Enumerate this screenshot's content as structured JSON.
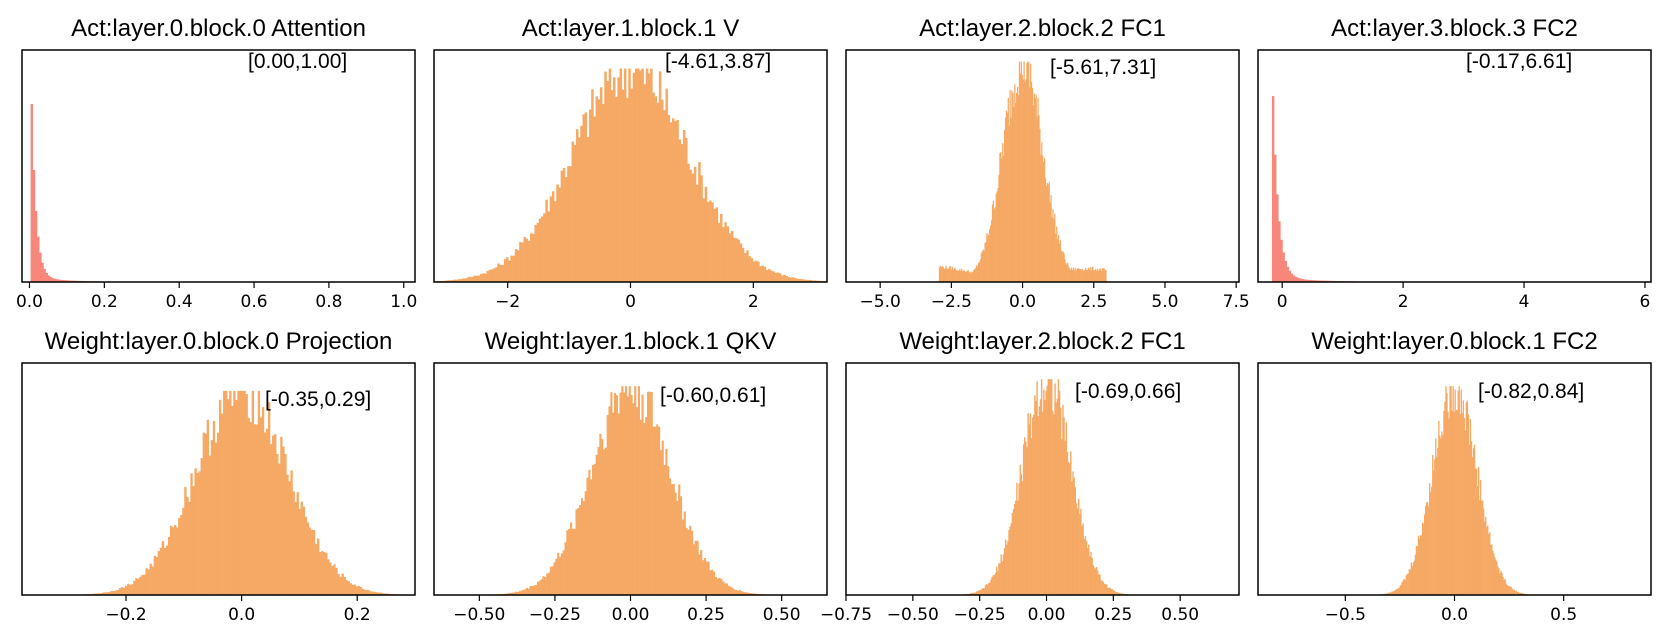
{
  "colors": {
    "salmon": "#f8867a",
    "orange": "#f5a964",
    "axis": "#000000"
  },
  "chart_data": [
    {
      "type": "bar",
      "title": "Act:layer.0.block.0 Attention",
      "range_label": "[0.00,1.00]",
      "color": "#f8867a",
      "shape": "decay",
      "center": 0.003,
      "scale": 0.012,
      "peak": 0.95,
      "xlim": [
        -0.02,
        1.03
      ],
      "ticks": [
        0.0,
        0.2,
        0.4,
        0.6,
        0.8,
        1.0
      ],
      "tick_labels": [
        "0.0",
        "0.2",
        "0.4",
        "0.6",
        "0.8",
        "1.0"
      ],
      "grid": false
    },
    {
      "type": "bar",
      "title": "Act:layer.1.block.1 V",
      "range_label": "[-4.61,3.87]",
      "color": "#f5a964",
      "shape": "gauss",
      "center": 0.0,
      "scale": 0.95,
      "peak": 0.92,
      "xlim": [
        -3.2,
        3.2
      ],
      "ticks": [
        -2,
        0,
        2
      ],
      "tick_labels": [
        "−2",
        "0",
        "2"
      ],
      "grid": false
    },
    {
      "type": "bar",
      "title": "Act:layer.2.block.2 FC1",
      "range_label": "[-5.61,7.31]",
      "color": "#f5a964",
      "shape": "heavy",
      "center": 0.0,
      "scale": 0.7,
      "peak": 0.95,
      "xlim": [
        -6.2,
        7.6
      ],
      "ticks": [
        -5.0,
        -2.5,
        0.0,
        2.5,
        5.0,
        7.5
      ],
      "tick_labels": [
        "−5.0",
        "−2.5",
        "0.0",
        "2.5",
        "5.0",
        "7.5"
      ],
      "grid": false
    },
    {
      "type": "bar",
      "title": "Act:layer.3.block.3 FC2",
      "range_label": "[-0.17,6.61]",
      "color": "#f8867a",
      "shape": "decay",
      "center": -0.17,
      "scale": 0.09,
      "peak": 0.95,
      "xlim": [
        -0.4,
        6.1
      ],
      "ticks": [
        0,
        2,
        4,
        6
      ],
      "tick_labels": [
        "0",
        "2",
        "4",
        "6"
      ],
      "grid": false
    },
    {
      "type": "bar",
      "title": "Weight:layer.0.block.0 Projection",
      "range_label": "[-0.35,0.29]",
      "color": "#f5a964",
      "shape": "gauss",
      "center": 0.0,
      "scale": 0.08,
      "peak": 0.88,
      "xlim": [
        -0.38,
        0.3
      ],
      "ticks": [
        -0.2,
        0.0,
        0.2
      ],
      "tick_labels": [
        "−0.2",
        "0.0",
        "0.2"
      ],
      "grid": false
    },
    {
      "type": "bar",
      "title": "Weight:layer.1.block.1 QKV",
      "range_label": "[-0.60,0.61]",
      "color": "#f5a964",
      "shape": "gauss",
      "center": 0.0,
      "scale": 0.13,
      "peak": 0.9,
      "xlim": [
        -0.65,
        0.65
      ],
      "ticks": [
        -0.5,
        -0.25,
        0.0,
        0.25,
        0.5
      ],
      "tick_labels": [
        "−0.50",
        "−0.25",
        "0.00",
        "0.25",
        "0.50"
      ],
      "grid": false
    },
    {
      "type": "bar",
      "title": "Weight:layer.2.block.2 FC1",
      "range_label": "[-0.69,0.66]",
      "color": "#f5a964",
      "shape": "gauss",
      "center": 0.0,
      "scale": 0.09,
      "peak": 0.93,
      "xlim": [
        -0.75,
        0.72
      ],
      "ticks": [
        -0.75,
        -0.5,
        -0.25,
        0.0,
        0.25,
        0.5
      ],
      "tick_labels": [
        "−0.75",
        "−0.50",
        "−0.25",
        "0.00",
        "0.25",
        "0.50"
      ],
      "grid": false
    },
    {
      "type": "bar",
      "title": "Weight:layer.0.block.1 FC2",
      "range_label": "[-0.82,0.84]",
      "color": "#f5a964",
      "shape": "gauss",
      "center": 0.0,
      "scale": 0.1,
      "peak": 0.9,
      "xlim": [
        -0.9,
        0.9
      ],
      "ticks": [
        -0.5,
        0.0,
        0.5
      ],
      "tick_labels": [
        "−0.5",
        "0.0",
        "0.5"
      ],
      "grid": false
    }
  ]
}
